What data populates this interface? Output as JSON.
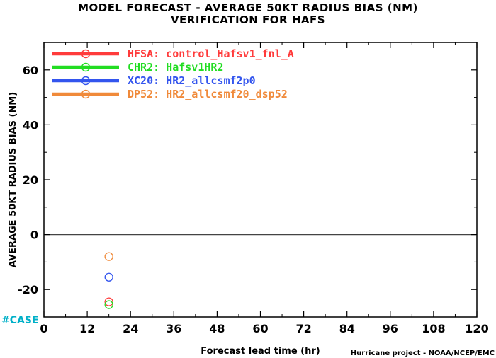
{
  "title_line1": "MODEL FORECAST - AVERAGE 50KT RADIUS BIAS (NM)",
  "title_line2": "VERIFICATION FOR HAFS",
  "case_label": "#CASE",
  "credit": "Hurricane project - NOAA/NCEP/EMC",
  "chart_data": {
    "type": "scatter",
    "title": "MODEL FORECAST - AVERAGE 50KT RADIUS BIAS (NM)",
    "subtitle": "VERIFICATION FOR HAFS",
    "xlabel": "Forecast lead time (hr)",
    "ylabel": "AVERAGE 50KT RADIUS BIAS (NM)",
    "xlim": [
      0,
      120
    ],
    "ylim": [
      -30,
      70
    ],
    "xticks": [
      0,
      12,
      24,
      36,
      48,
      60,
      72,
      84,
      96,
      108,
      120
    ],
    "yticks": [
      -20,
      0,
      20,
      40,
      60
    ],
    "zero_line": 0,
    "legend_position": "top-left",
    "series": [
      {
        "name": "HFSA: control_Hafsv1_fnl_A",
        "color": "#ff3b3b",
        "x": [
          18
        ],
        "y": [
          -24.5
        ]
      },
      {
        "name": "CHR2: Hafsv1HR2",
        "color": "#22dd22",
        "x": [
          18
        ],
        "y": [
          -25.5
        ]
      },
      {
        "name": "XC20: HR2_allcsmf2p0",
        "color": "#3355ee",
        "x": [
          18
        ],
        "y": [
          -15.5
        ]
      },
      {
        "name": "DP52: HR2_allcsmf20_dsp52",
        "color": "#f08a3a",
        "x": [
          18
        ],
        "y": [
          -8
        ]
      }
    ]
  }
}
